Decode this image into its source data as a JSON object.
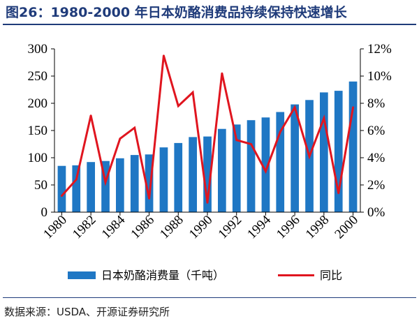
{
  "title": "图26：1980-2000 年日本奶酪消费品持续保持快速增长",
  "source": "数据来源：USDA、开源证券研究所",
  "chart_data": {
    "type": "bar+line",
    "x": [
      "1980",
      "1981",
      "1982",
      "1983",
      "1984",
      "1985",
      "1986",
      "1987",
      "1988",
      "1989",
      "1990",
      "1991",
      "1992",
      "1993",
      "1994",
      "1995",
      "1996",
      "1997",
      "1998",
      "1999",
      "2000"
    ],
    "x_tick_labels": [
      "1980",
      "1982",
      "1984",
      "1986",
      "1988",
      "1990",
      "1992",
      "1994",
      "1996",
      "1998",
      "2000"
    ],
    "series": [
      {
        "name": "日本奶酪消费量（千吨）",
        "type": "bar",
        "axis": "left",
        "color": "#1f77c4",
        "values": [
          85,
          86,
          92,
          94,
          99,
          105,
          106,
          119,
          127,
          138,
          139,
          153,
          161,
          169,
          174,
          184,
          198,
          206,
          220,
          223,
          240
        ]
      },
      {
        "name": "同比",
        "type": "line",
        "axis": "right",
        "color": "#e0151f",
        "values": [
          1.2,
          2.4,
          7.1,
          2.2,
          5.4,
          6.2,
          1.0,
          11.5,
          7.8,
          8.8,
          0.7,
          10.2,
          5.3,
          5.0,
          3.0,
          5.9,
          7.7,
          4.1,
          6.9,
          1.4,
          7.7
        ]
      }
    ],
    "y_left": {
      "min": 0,
      "max": 300,
      "ticks": [
        0,
        50,
        100,
        150,
        200,
        250,
        300
      ]
    },
    "y_right": {
      "min": 0,
      "max": 12,
      "ticks": [
        "0%",
        "2%",
        "4%",
        "6%",
        "8%",
        "10%",
        "12%"
      ]
    },
    "legend": {
      "position": "bottom",
      "bar_label": "日本奶酪消费量（千吨）",
      "line_label": "同比"
    }
  }
}
